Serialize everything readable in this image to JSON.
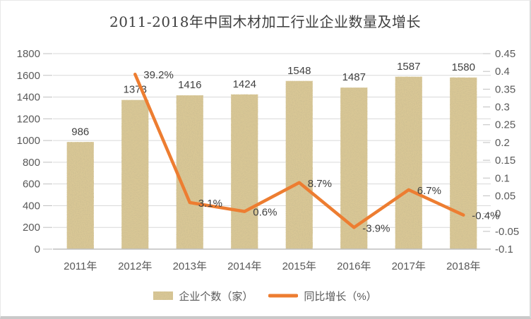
{
  "chart_data": {
    "type": "bar",
    "subtype": "bar-line-combo",
    "title": "2011-2018年中国木材加工行业企业数量及增长",
    "categories": [
      "2011年",
      "2012年",
      "2013年",
      "2014年",
      "2015年",
      "2016年",
      "2017年",
      "2018年"
    ],
    "series": [
      {
        "name": "企业个数（家）",
        "type": "bar",
        "axis": "left",
        "values": [
          986,
          1373,
          1416,
          1424,
          1548,
          1487,
          1587,
          1580
        ],
        "labels": [
          "986",
          "1373",
          "1416",
          "1424",
          "1548",
          "1487",
          "1587",
          "1580"
        ]
      },
      {
        "name": "同比增长（%）",
        "type": "line",
        "axis": "right",
        "values": [
          null,
          0.392,
          0.031,
          0.006,
          0.087,
          -0.039,
          0.067,
          -0.004
        ],
        "labels": [
          "",
          "39.2%",
          "3.1%",
          "0.6%",
          "8.7%",
          "-3.9%",
          "6.7%",
          "-0.4%"
        ]
      }
    ],
    "left_axis": {
      "min": 0,
      "max": 1800,
      "step": 200,
      "ticks": [
        "1800",
        "1600",
        "1400",
        "1200",
        "1000",
        "800",
        "600",
        "400",
        "200",
        "0"
      ]
    },
    "right_axis": {
      "min": -0.1,
      "max": 0.45,
      "step": 0.05,
      "ticks": [
        "0.45",
        "0.4",
        "0.35",
        "0.3",
        "0.25",
        "0.2",
        "0.15",
        "0.1",
        "0.05",
        "0",
        "-0.05",
        "-0.1"
      ]
    },
    "grid": true,
    "legend_position": "bottom",
    "colors": {
      "bar_base": "#d9c795",
      "bar_speckle": "#9d8449",
      "line": "#ed7d31",
      "gridline": "#d9d9d9",
      "axis_line": "#bfbfbf",
      "axis_text": "#595959",
      "label_text": "#404040",
      "title_text": "#3f3f3f"
    }
  }
}
